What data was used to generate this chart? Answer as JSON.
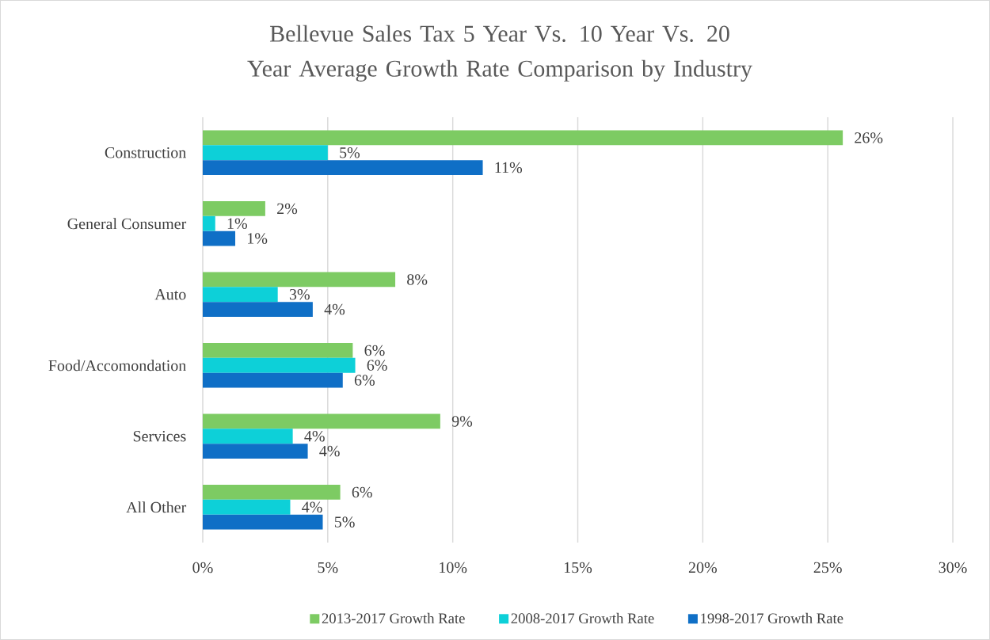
{
  "chart_data": {
    "type": "bar",
    "orientation": "horizontal",
    "title": "Bellevue Sales Tax 5 Year Vs. 10 Year Vs. 20 Year Average Growth Rate Comparison by Industry",
    "categories": [
      "Construction",
      "General Consumer",
      "Auto",
      "Food/Accomondation",
      "Services",
      "All Other"
    ],
    "series": [
      {
        "name": "2013-2017 Growth Rate",
        "color": "#7dcb63",
        "values": [
          25.6,
          2.5,
          7.7,
          6.0,
          9.5,
          5.5
        ],
        "value_labels": [
          "26%",
          "2%",
          "8%",
          "6%",
          "9%",
          "6%"
        ]
      },
      {
        "name": "2008-2017 Growth Rate",
        "color": "#0dd0d8",
        "values": [
          5.0,
          0.5,
          3.0,
          6.1,
          3.6,
          3.5
        ],
        "value_labels": [
          "5%",
          "1%",
          "3%",
          "6%",
          "4%",
          "4%"
        ]
      },
      {
        "name": "1998-2017 Growth Rate",
        "color": "#0f6fc6",
        "values": [
          11.2,
          1.3,
          4.4,
          5.6,
          4.2,
          4.8
        ],
        "value_labels": [
          "11%",
          "1%",
          "4%",
          "6%",
          "4%",
          "5%"
        ]
      }
    ],
    "xlim": [
      0,
      30
    ],
    "xticks": [
      {
        "value": 0,
        "label": "0%"
      },
      {
        "value": 5,
        "label": "5%"
      },
      {
        "value": 10,
        "label": "10%"
      },
      {
        "value": 15,
        "label": "15%"
      },
      {
        "value": 20,
        "label": "20%"
      },
      {
        "value": 25,
        "label": "25%"
      },
      {
        "value": 30,
        "label": "30%"
      }
    ],
    "grid": "x",
    "legend": "bottom"
  }
}
